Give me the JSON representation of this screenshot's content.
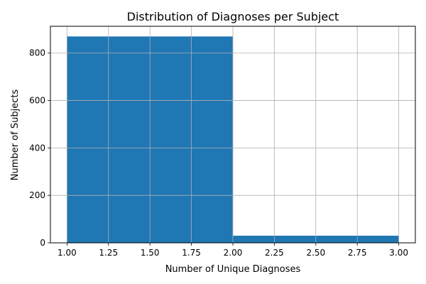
{
  "chart_data": {
    "type": "bar",
    "title": "Distribution of Diagnoses per Subject",
    "xlabel": "Number of Unique Diagnoses",
    "ylabel": "Number of Subjects",
    "xlim": [
      0.9,
      3.1
    ],
    "ylim": [
      0,
      913
    ],
    "xticks": [
      "1.00",
      "1.25",
      "1.50",
      "1.75",
      "2.00",
      "2.25",
      "2.50",
      "2.75",
      "3.00"
    ],
    "yticks": [
      "0",
      "200",
      "400",
      "600",
      "800"
    ],
    "grid": true,
    "bins": [
      {
        "x0": 1.0,
        "x1": 2.0,
        "value": 870
      },
      {
        "x0": 2.0,
        "x1": 3.0,
        "value": 30
      }
    ],
    "color": "#1f77b4"
  }
}
